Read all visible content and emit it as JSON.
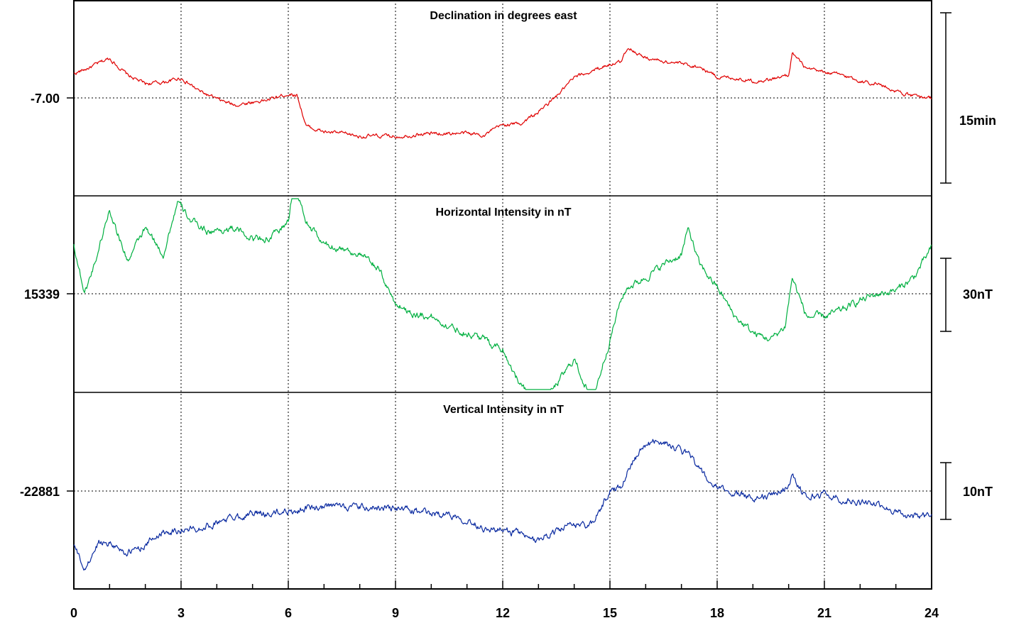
{
  "chart_data": {
    "type": "line",
    "x_ticks": [
      0,
      3,
      6,
      9,
      12,
      15,
      18,
      21,
      24
    ],
    "xlim": [
      0,
      24
    ],
    "grid": true,
    "panels": [
      {
        "title": "Declination in degrees east",
        "baseline_label": "-7.00",
        "scale_label": "15min",
        "color": "#e00000",
        "series": {
          "x": [
            0,
            0.5,
            1,
            1.5,
            2,
            2.5,
            3,
            3.5,
            4,
            4.5,
            5,
            5.5,
            6,
            6.25,
            6.5,
            7,
            7.5,
            8,
            8.5,
            9,
            9.5,
            10,
            10.5,
            11,
            11.5,
            12,
            12.5,
            13,
            13.5,
            14,
            14.5,
            15,
            15.3,
            15.5,
            16,
            16.5,
            17,
            17.5,
            18,
            18.5,
            19,
            19.5,
            20,
            20.1,
            20.5,
            21,
            21.5,
            22,
            22.5,
            23,
            23.5,
            24
          ],
          "y": [
            8.5,
            11,
            14,
            8,
            5,
            5.5,
            7,
            2.5,
            -0.5,
            -2.5,
            -1.5,
            -0.5,
            1.5,
            1,
            -10,
            -12,
            -12.5,
            -13.5,
            -13.5,
            -13.5,
            -13,
            -12.5,
            -12.5,
            -12.5,
            -13,
            -9.5,
            -9,
            -5,
            0.5,
            7,
            9.5,
            12,
            12.5,
            18,
            14,
            13,
            12,
            11,
            7.5,
            7,
            6,
            6.5,
            8,
            16,
            10,
            9,
            8,
            6,
            5,
            2.5,
            0.5,
            0
          ]
        }
      },
      {
        "title": "Horizontal Intensity in nT",
        "baseline_label": "15339",
        "scale_label": "30nT",
        "color": "#00b040",
        "series": {
          "x": [
            0,
            0.3,
            0.6,
            1,
            1.5,
            2,
            2.5,
            2.9,
            3.3,
            3.8,
            4.5,
            5,
            5.5,
            6,
            6.15,
            6.5,
            7,
            7.5,
            8,
            8.5,
            9,
            9.5,
            10,
            10.5,
            11,
            11.5,
            12,
            12.5,
            13,
            13.5,
            14,
            14.5,
            15,
            15.3,
            15.5,
            16,
            16.5,
            17,
            17.2,
            17.5,
            18,
            18.5,
            19,
            19.5,
            19.9,
            20.1,
            20.5,
            21,
            21.5,
            22,
            22.5,
            23,
            23.5,
            24
          ],
          "y": [
            15,
            0,
            10,
            26,
            10,
            20,
            12,
            28,
            22,
            19,
            20,
            17,
            17,
            22,
            34,
            22,
            15,
            14,
            12,
            8,
            -3,
            -6,
            -7,
            -10,
            -12,
            -14,
            -17,
            -28,
            -35,
            -28,
            -20,
            -33,
            -14,
            -2,
            2,
            5,
            9,
            12,
            20,
            9,
            2,
            -7,
            -12,
            -14,
            -10,
            5,
            -7,
            -7,
            -5,
            -2,
            0,
            1,
            5,
            14
          ]
        }
      },
      {
        "title": "Vertical Intensity in nT",
        "baseline_label": "-22881",
        "scale_label": "10nT",
        "color": "#0a2aa0",
        "series": {
          "x": [
            0,
            0.3,
            0.7,
            1,
            1.5,
            2,
            2.5,
            3,
            3.5,
            4,
            4.5,
            5,
            5.5,
            6,
            6.2,
            6.5,
            7,
            7.5,
            8,
            8.5,
            9,
            9.5,
            10,
            10.5,
            11,
            11.5,
            12,
            12.5,
            12.8,
            13.5,
            14,
            14.5,
            15,
            15.3,
            15.6,
            16,
            16.3,
            16.7,
            17,
            17.3,
            17.7,
            18,
            18.5,
            19,
            19.5,
            19.9,
            20.1,
            20.5,
            21,
            21.5,
            22,
            22.5,
            23,
            23.5,
            24
          ],
          "y": [
            -9.5,
            -14,
            -9,
            -9,
            -11,
            -9.5,
            -7,
            -7,
            -6.5,
            -5.5,
            -4.5,
            -4,
            -4,
            -3.5,
            -3.5,
            -3,
            -3,
            -2.5,
            -3,
            -3,
            -3,
            -3.5,
            -4,
            -4,
            -5,
            -6.5,
            -7,
            -7.5,
            -9,
            -7,
            -6,
            -6,
            0,
            1,
            5,
            8,
            9,
            8,
            7,
            6,
            2,
            0.5,
            -0.5,
            -1,
            -1,
            0.5,
            2.5,
            -1,
            -0.5,
            -1.5,
            -2,
            -2.5,
            -3.5,
            -4.5,
            -4
          ]
        }
      }
    ]
  }
}
